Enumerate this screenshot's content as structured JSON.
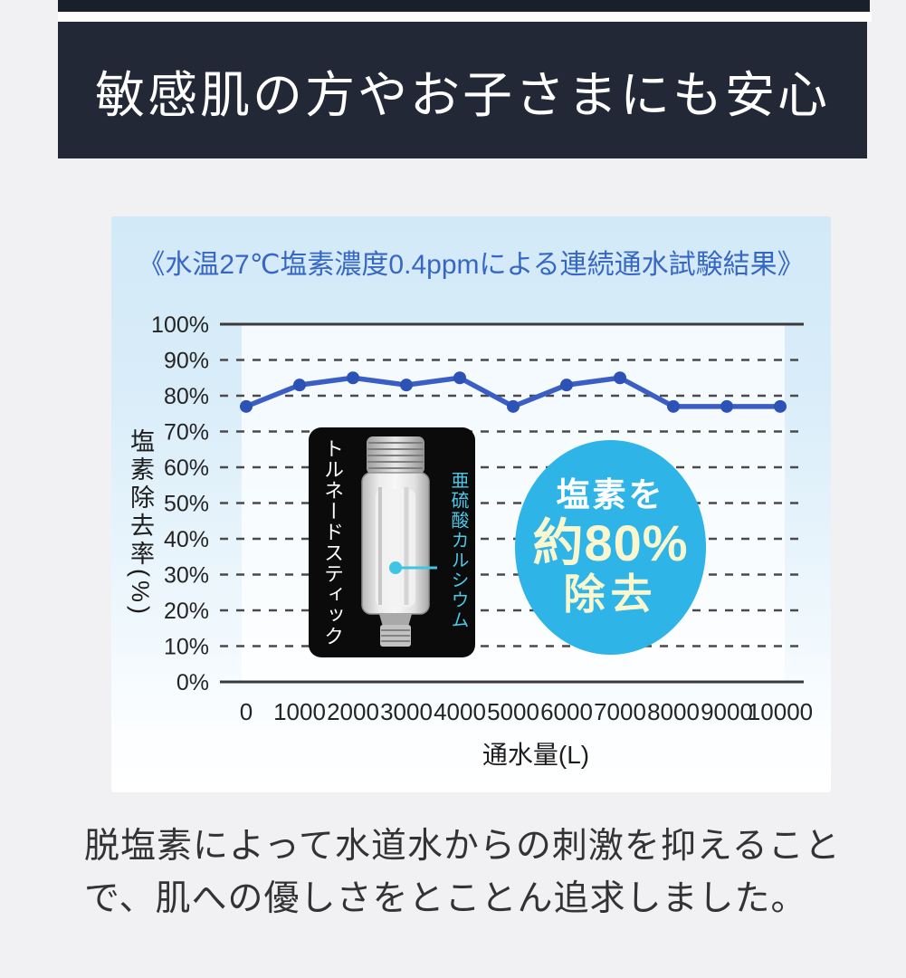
{
  "banner": {
    "title": "敏感肌の方やお子さまにも安心"
  },
  "chart_panel": {
    "title": "《水温27℃塩素濃度0.4ppmによる連続通水試験結果》",
    "panel_bg_top": "#d2e9f7",
    "panel_bg_bottom": "#ffffff",
    "title_color": "#3767c5"
  },
  "chart_data": {
    "type": "line",
    "title": "《水温27℃塩素濃度0.4ppmによる連続通水試験結果》",
    "x": [
      0,
      1000,
      2000,
      3000,
      4000,
      5000,
      6000,
      7000,
      8000,
      9000,
      10000
    ],
    "values": [
      77,
      83,
      85,
      83,
      85,
      77,
      83,
      85,
      77,
      77,
      77
    ],
    "xlabel": "通水量(L)",
    "ylabel": "塩素除去率(%)",
    "ylim": [
      0,
      100
    ],
    "ytick_labels": [
      "0%",
      "10%",
      "20%",
      "30%",
      "40%",
      "50%",
      "60%",
      "70%",
      "80%",
      "90%",
      "100%"
    ],
    "grid": "horizontal; dashed at 10–90%, solid at 0% and 100%",
    "legend": "none",
    "colors": {
      "line": "#3a5ec4",
      "dot": "#2d52b5",
      "grid_dashed": "#4a4a4a",
      "grid_solid": "#3a3a3a",
      "tick_text": "#242424"
    }
  },
  "product_box": {
    "left_label": "トルネードスティック",
    "right_label": "亜硫酸カルシウム",
    "callout_color": "#3fc4e4"
  },
  "badge": {
    "line1": "塩素を",
    "line2": "約80%",
    "line3": "除去",
    "bg_color": "#2eb4e7",
    "text_color_white": "#ffffff",
    "text_color_cream": "#faf7ce"
  },
  "footer": {
    "line1": "脱塩素によって水道水からの刺激を抑えること",
    "line2": "で、肌への優しさをとことん追求しました。"
  }
}
